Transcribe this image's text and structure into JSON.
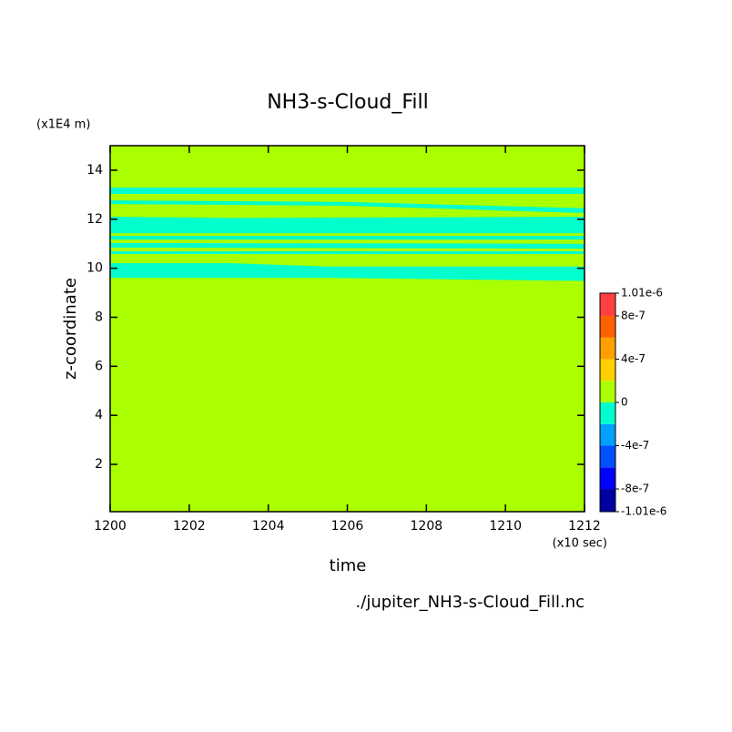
{
  "chart_data": {
    "type": "contour",
    "title": "NH3-s-Cloud_Fill",
    "x_label": "time",
    "y_label": "z-coordinate",
    "y_unit": "(x1E4 m)",
    "x_unit": "(x10 sec)",
    "source": "./jupiter_NH3-s-Cloud_Fill.nc",
    "xlim": [
      1200,
      1212
    ],
    "xticks": [
      1200,
      1202,
      1204,
      1206,
      1208,
      1210,
      1212
    ],
    "ylim": [
      0.07,
      15
    ],
    "yticks": [
      2,
      4,
      6,
      8,
      10,
      12,
      14
    ],
    "background_color": "#aaff00",
    "regions": [
      {
        "color": "#00ffcc",
        "x": [
          1200,
          1212
        ],
        "top": [
          13.29,
          13.29
        ],
        "bottom": [
          13.03,
          13.03
        ]
      },
      {
        "color": "#00ffcc",
        "x": [
          1200,
          1206,
          1212
        ],
        "top": [
          12.77,
          12.7,
          12.45
        ],
        "bottom": [
          12.62,
          12.55,
          12.25
        ]
      },
      {
        "color": "#00ffcc",
        "x": [
          1200,
          1203,
          1212
        ],
        "top": [
          12.1,
          12.05,
          12.1
        ],
        "bottom": [
          11.43,
          11.43,
          11.43
        ]
      },
      {
        "color": "#00ffcc",
        "x": [
          1200,
          1212
        ],
        "top": [
          11.32,
          11.32
        ],
        "bottom": [
          11.17,
          11.17
        ]
      },
      {
        "color": "#00ffcc",
        "x": [
          1200,
          1212
        ],
        "top": [
          11.03,
          11.0
        ],
        "bottom": [
          10.84,
          10.8
        ]
      },
      {
        "color": "#00ffcc",
        "x": [
          1200,
          1212
        ],
        "top": [
          10.69,
          10.69
        ],
        "bottom": [
          10.58,
          10.58
        ]
      },
      {
        "color": "#00ffcc",
        "x": [
          1200,
          1203,
          1205.5,
          1212
        ],
        "top": [
          10.21,
          10.21,
          10.07,
          10.07
        ],
        "bottom": [
          9.61,
          9.61,
          9.61,
          9.48
        ]
      }
    ],
    "colorbar": {
      "bounds": [
        -1.01e-06,
        -8e-07,
        -6e-07,
        -4e-07,
        -2e-07,
        0,
        2e-07,
        4e-07,
        6e-07,
        8e-07,
        1.01e-06
      ],
      "colors": [
        "#0000a0",
        "#0000ff",
        "#0050ff",
        "#00a0ff",
        "#00ffcc",
        "#aaff00",
        "#ffd000",
        "#ffa000",
        "#ff6000",
        "#ff4040"
      ],
      "ticks": [
        {
          "value": 1.01e-06,
          "label": "1.01e-6"
        },
        {
          "value": 8e-07,
          "label": "8e-7"
        },
        {
          "value": 4e-07,
          "label": "4e-7"
        },
        {
          "value": 0,
          "label": "0"
        },
        {
          "value": -4e-07,
          "label": "-4e-7"
        },
        {
          "value": -8e-07,
          "label": "-8e-7"
        },
        {
          "value": -1.01e-06,
          "label": "-1.01e-6"
        }
      ]
    }
  }
}
